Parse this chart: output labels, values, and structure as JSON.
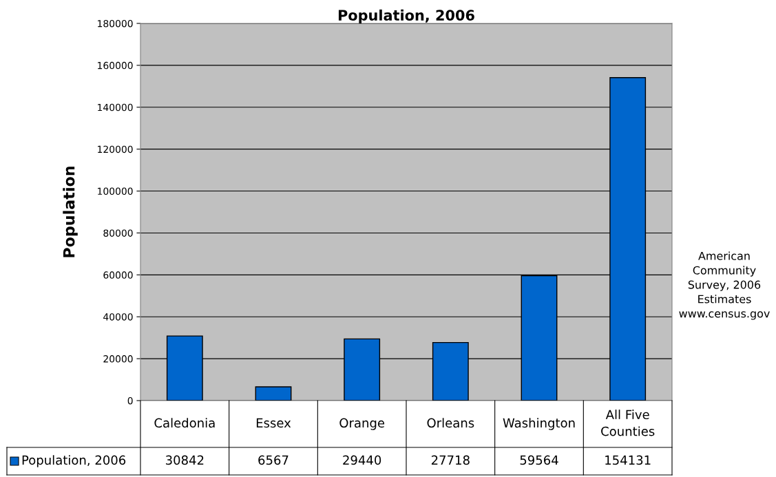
{
  "chart_data": {
    "type": "bar",
    "title": "Population, 2006",
    "ylabel": "Population",
    "categories": [
      "Caledonia",
      "Essex",
      "Orange",
      "Orleans",
      "Washington",
      "All Five Counties"
    ],
    "series": [
      {
        "name": "Population, 2006",
        "color": "#0066cc",
        "values": [
          30842,
          6567,
          29440,
          27718,
          59564,
          154131
        ]
      }
    ],
    "ylim": [
      0,
      180000
    ],
    "yticks": [
      0,
      20000,
      40000,
      60000,
      80000,
      100000,
      120000,
      140000,
      160000,
      180000
    ],
    "grid": "y",
    "legend": "bottom",
    "data_labels": true,
    "annotations": [
      "American Community Survey, 2006 Estimates www.census.gov"
    ]
  }
}
